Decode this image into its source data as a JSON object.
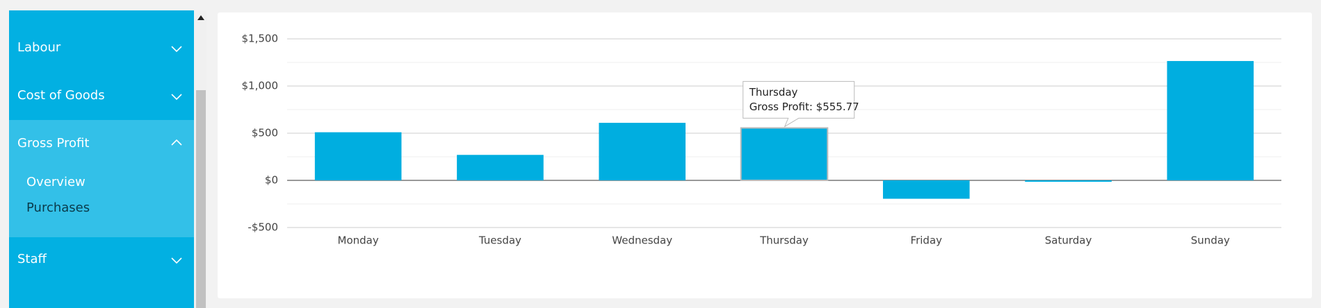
{
  "sidebar": {
    "items": [
      {
        "label": "Labour",
        "expanded": false
      },
      {
        "label": "Cost of Goods",
        "expanded": false
      },
      {
        "label": "Gross Profit",
        "expanded": true,
        "children": [
          "Overview",
          "Purchases"
        ]
      },
      {
        "label": "Staff",
        "expanded": false
      }
    ]
  },
  "chart_data": {
    "type": "bar",
    "categories": [
      "Monday",
      "Tuesday",
      "Wednesday",
      "Thursday",
      "Friday",
      "Saturday",
      "Sunday"
    ],
    "series": [
      {
        "name": "Gross Profit",
        "color": "#00aee0",
        "values": [
          510,
          270,
          610,
          555.77,
          -195,
          -15,
          1265
        ]
      }
    ],
    "ylim": [
      -500,
      1500
    ],
    "yticks": [
      {
        "value": -500,
        "label": "-$500"
      },
      {
        "value": 0,
        "label": "$0"
      },
      {
        "value": 500,
        "label": "$500"
      },
      {
        "value": 1000,
        "label": "$1,000"
      },
      {
        "value": 1500,
        "label": "$1,500"
      }
    ],
    "minor_yticks": [
      -250,
      250,
      750,
      1250
    ],
    "grid": true,
    "tooltip": {
      "category": "Thursday",
      "label": "Gross Profit: $555.77"
    }
  }
}
